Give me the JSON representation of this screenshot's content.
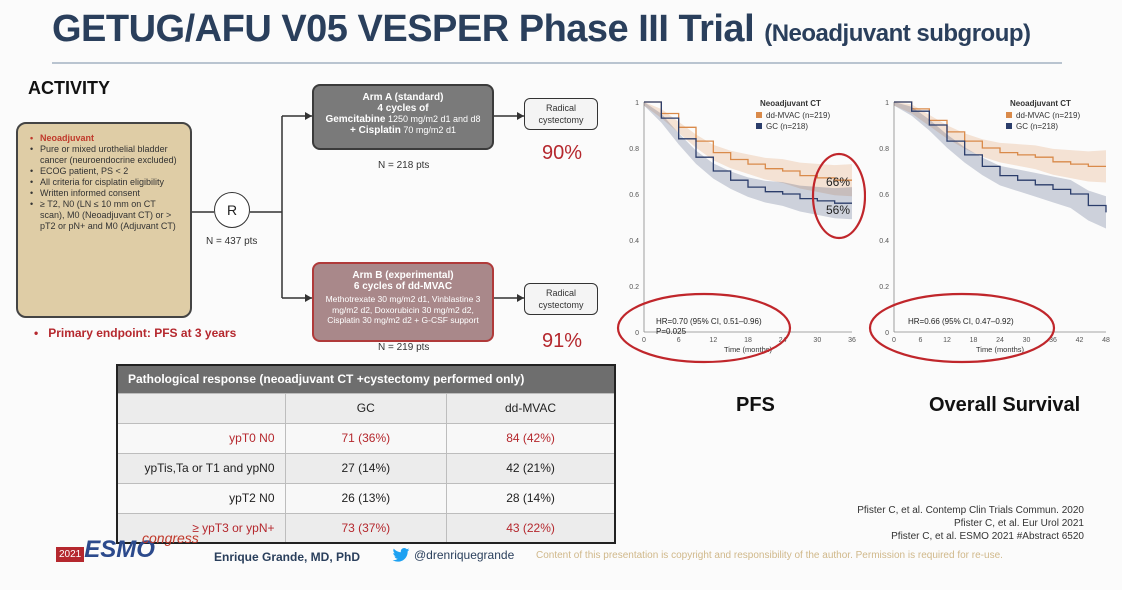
{
  "slide": {
    "title": "GETUG/AFU V05 VESPER Phase III Trial",
    "subtitle": "(Neoadjuvant subgroup)",
    "section": "ACTIVITY"
  },
  "criteria": [
    {
      "text": "Neoadjuvant",
      "highlight": true
    },
    {
      "text": "Pure or mixed urothelial bladder cancer (neuroendocrine excluded)",
      "highlight": false
    },
    {
      "text": "ECOG patient, PS < 2",
      "highlight": false
    },
    {
      "text": "All criteria for cisplatin eligibility",
      "highlight": false
    },
    {
      "text": "Written informed consent",
      "highlight": false
    },
    {
      "text": "≥ T2, N0 (LN ≤ 10 mm on CT scan), M0 (Neoadjuvant CT) or > pT2 or pN+ and M0 (Adjuvant CT)",
      "highlight": false
    }
  ],
  "randomization": {
    "label": "R",
    "n": "N = 437 pts"
  },
  "arm_a": {
    "title": "Arm A (standard)",
    "cycles": "4 cycles of",
    "drug1": "Gemcitabine",
    "dose1": "1250 mg/m2 d1 and d8",
    "drug2": "+ Cisplatin",
    "dose2": "70 mg/m2 d1",
    "n": "N = 218 pts",
    "outcome": "Radical cystectomy",
    "pct": "90%"
  },
  "arm_b": {
    "title": "Arm B (experimental)",
    "cycles": "6 cycles of dd-MVAC",
    "regimen": "Methotrexate 30 mg/m2 d1, Vinblastine 3 mg/m2 d2, Doxorubicin 30 mg/m2 d2, Cisplatin 30 mg/m2 d2 + G-CSF support",
    "n": "N = 219 pts",
    "outcome": "Radical cystectomy",
    "pct": "91%"
  },
  "endpoint": "Primary endpoint: PFS at 3 years",
  "path_table": {
    "header": "Pathological response (neoadjuvant CT +cystectomy performed only)",
    "columns": [
      "GC",
      "dd-MVAC"
    ],
    "rows": [
      {
        "label": "ypT0 N0",
        "gc": "71 (36%)",
        "mvac": "84 (42%)",
        "red": true
      },
      {
        "label": "ypTis,Ta or T1 and ypN0",
        "gc": "27 (14%)",
        "mvac": "42 (21%)",
        "red": false
      },
      {
        "label": "ypT2 N0",
        "gc": "26 (13%)",
        "mvac": "28 (14%)",
        "red": false
      },
      {
        "label": "≥ ypT3 or ypN+",
        "gc": "73 (37%)",
        "mvac": "43 (22%)",
        "red": true
      }
    ]
  },
  "chart_data": [
    {
      "type": "line",
      "title": "PFS",
      "xlabel": "Time (months)",
      "xlim": [
        0,
        36
      ],
      "ylim": [
        0,
        1.0
      ],
      "xticks": [
        0,
        6,
        12,
        18,
        24,
        30,
        36
      ],
      "yticks": [
        0.0,
        0.2,
        0.4,
        0.6,
        0.8,
        1.0
      ],
      "legend_title": "Neoadjuvant CT",
      "legend_position": "top-right",
      "series": [
        {
          "name": "dd-MVAC (n=219)",
          "color": "#d98a4a",
          "x": [
            0,
            3,
            6,
            9,
            12,
            15,
            18,
            21,
            24,
            27,
            30,
            33,
            36
          ],
          "y": [
            1.0,
            0.95,
            0.89,
            0.83,
            0.78,
            0.75,
            0.73,
            0.71,
            0.7,
            0.68,
            0.67,
            0.66,
            0.66
          ]
        },
        {
          "name": "GC (n=218)",
          "color": "#2b3d6b",
          "x": [
            0,
            3,
            6,
            9,
            12,
            15,
            18,
            21,
            24,
            27,
            30,
            33,
            36
          ],
          "y": [
            1.0,
            0.93,
            0.84,
            0.76,
            0.7,
            0.66,
            0.63,
            0.61,
            0.6,
            0.58,
            0.57,
            0.56,
            0.56
          ]
        }
      ],
      "annotations": [
        "66%",
        "56%"
      ],
      "hr_line1": "HR=0.70 (95% CI, 0.51–0.96)",
      "hr_line2": "P=0.025"
    },
    {
      "type": "line",
      "title": "Overall Survival",
      "xlabel": "Time (months)",
      "xlim": [
        0,
        48
      ],
      "ylim": [
        0,
        1.0
      ],
      "xticks": [
        0,
        6,
        12,
        18,
        24,
        30,
        36,
        42,
        48
      ],
      "yticks": [
        0.0,
        0.2,
        0.4,
        0.6,
        0.8,
        1.0
      ],
      "legend_title": "Neoadjuvant CT",
      "legend_position": "top-right",
      "series": [
        {
          "name": "dd-MVAC (n=219)",
          "color": "#d98a4a",
          "x": [
            0,
            4,
            8,
            12,
            16,
            20,
            24,
            28,
            32,
            36,
            40,
            44,
            48
          ],
          "y": [
            1.0,
            0.97,
            0.92,
            0.87,
            0.83,
            0.8,
            0.78,
            0.77,
            0.76,
            0.74,
            0.73,
            0.72,
            0.72
          ]
        },
        {
          "name": "GC (n=218)",
          "color": "#2b3d6b",
          "x": [
            0,
            4,
            8,
            12,
            16,
            20,
            24,
            28,
            32,
            36,
            40,
            44,
            48
          ],
          "y": [
            1.0,
            0.96,
            0.9,
            0.83,
            0.77,
            0.72,
            0.68,
            0.66,
            0.64,
            0.62,
            0.6,
            0.55,
            0.52
          ]
        }
      ],
      "hr_line1": "HR=0.66 (95% CI, 0.47–0.92)"
    }
  ],
  "refs": [
    "Pfister C, et al. Contemp Clin Trials Commun. 2020",
    "Pfister C, et al. Eur Urol 2021",
    "Pfister C, et al. ESMO 2021 #Abstract 6520"
  ],
  "footer": {
    "year": "2021",
    "logo": "ESMO",
    "congress": "congress",
    "author": "Enrique Grande, MD, PhD",
    "twitter": "@drenriquegrande",
    "copyright": "Content of this presentation is copyright and responsibility of the author. Permission is required for re-use."
  }
}
